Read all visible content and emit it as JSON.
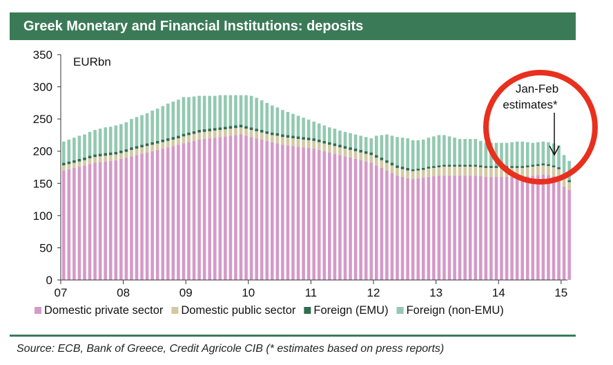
{
  "title": "Greek Monetary and Financial Institutions: deposits",
  "source": "Source: ECB, Bank of Greece, Credit Agricole CIB (* estimates based on press reports)",
  "colors": {
    "title_bg": "#3b7a57",
    "domestic_private": "#d49ac8",
    "domestic_public": "#d2c9a4",
    "foreign_emu": "#2e6d4e",
    "foreign_non_emu": "#93c9b1",
    "circle": "#e8301e"
  },
  "chart_data": {
    "type": "bar",
    "stacked": true,
    "unit_label": "EURbn",
    "ylim": [
      0,
      350
    ],
    "yticks": [
      0,
      50,
      100,
      150,
      200,
      250,
      300,
      350
    ],
    "xtick_labels": [
      "07",
      "08",
      "09",
      "10",
      "11",
      "12",
      "13",
      "14",
      "15"
    ],
    "xtick_positions": [
      0,
      12,
      24,
      36,
      48,
      60,
      72,
      84,
      96
    ],
    "grid": false,
    "legend_position": "bottom",
    "annotation": {
      "text_line1": "Jan-Feb",
      "text_line2": "estimates*",
      "highlight": "circled last bars with downward arrow"
    },
    "series": [
      {
        "name": "Domestic private sector",
        "values": [
          170,
          172,
          174,
          176,
          178,
          180,
          182,
          183,
          184,
          185,
          186,
          188,
          190,
          192,
          194,
          196,
          198,
          200,
          202,
          204,
          206,
          208,
          210,
          212,
          214,
          216,
          218,
          219,
          220,
          221,
          222,
          223,
          224,
          225,
          226,
          224,
          222,
          220,
          218,
          216,
          214,
          212,
          210,
          209,
          208,
          207,
          206,
          205,
          204,
          202,
          200,
          198,
          196,
          194,
          192,
          190,
          188,
          186,
          184,
          182,
          178,
          174,
          170,
          166,
          162,
          160,
          158,
          157,
          158,
          159,
          160,
          161,
          162,
          162,
          162,
          162,
          162,
          162,
          162,
          162,
          161,
          160,
          160,
          160,
          160,
          160,
          160,
          160,
          160,
          161,
          162,
          163,
          164,
          163,
          161,
          158,
          145,
          140
        ]
      },
      {
        "name": "Domestic public sector",
        "values": [
          8,
          8,
          8,
          8,
          8,
          9,
          9,
          9,
          9,
          9,
          9,
          9,
          9,
          10,
          10,
          10,
          10,
          10,
          10,
          10,
          10,
          10,
          10,
          11,
          11,
          11,
          11,
          11,
          11,
          11,
          11,
          11,
          11,
          11,
          11,
          11,
          11,
          11,
          11,
          11,
          11,
          12,
          12,
          12,
          12,
          12,
          12,
          12,
          12,
          12,
          12,
          12,
          12,
          12,
          12,
          12,
          12,
          12,
          12,
          12,
          12,
          12,
          12,
          12,
          12,
          12,
          12,
          12,
          12,
          12,
          13,
          13,
          13,
          14,
          14,
          14,
          14,
          14,
          14,
          14,
          14,
          14,
          14,
          14,
          14,
          14,
          14,
          14,
          14,
          14,
          14,
          14,
          14,
          14,
          14,
          14,
          13,
          12
        ]
      },
      {
        "name": "Foreign (EMU)",
        "values": [
          4,
          4,
          4,
          4,
          4,
          4,
          4,
          4,
          4,
          4,
          4,
          4,
          4,
          4,
          4,
          4,
          4,
          4,
          4,
          4,
          4,
          4,
          4,
          4,
          4,
          4,
          4,
          4,
          4,
          4,
          4,
          4,
          4,
          4,
          4,
          4,
          4,
          4,
          4,
          4,
          4,
          4,
          4,
          4,
          4,
          4,
          4,
          4,
          4,
          4,
          4,
          4,
          4,
          4,
          4,
          4,
          4,
          4,
          4,
          4,
          4,
          4,
          4,
          4,
          4,
          4,
          4,
          3,
          3,
          3,
          3,
          3,
          3,
          3,
          3,
          3,
          3,
          3,
          3,
          3,
          3,
          3,
          3,
          3,
          3,
          3,
          3,
          3,
          3,
          3,
          3,
          3,
          3,
          3,
          3,
          3,
          3,
          3
        ]
      },
      {
        "name": "Foreign (non-EMU)",
        "values": [
          33,
          34,
          35,
          36,
          36,
          37,
          38,
          39,
          40,
          40,
          41,
          41,
          42,
          44,
          45,
          46,
          47,
          49,
          50,
          52,
          54,
          55,
          56,
          57,
          55,
          54,
          53,
          52,
          51,
          50,
          50,
          49,
          48,
          47,
          46,
          48,
          49,
          48,
          46,
          44,
          42,
          40,
          38,
          36,
          34,
          32,
          30,
          28,
          26,
          25,
          24,
          23,
          23,
          22,
          22,
          22,
          22,
          22,
          22,
          22,
          30,
          35,
          40,
          42,
          44,
          45,
          46,
          45,
          44,
          44,
          45,
          46,
          47,
          46,
          44,
          42,
          40,
          40,
          40,
          40,
          38,
          36,
          36,
          36,
          36,
          36,
          37,
          38,
          38,
          36,
          34,
          34,
          34,
          34,
          34,
          34,
          33,
          30
        ]
      }
    ]
  }
}
